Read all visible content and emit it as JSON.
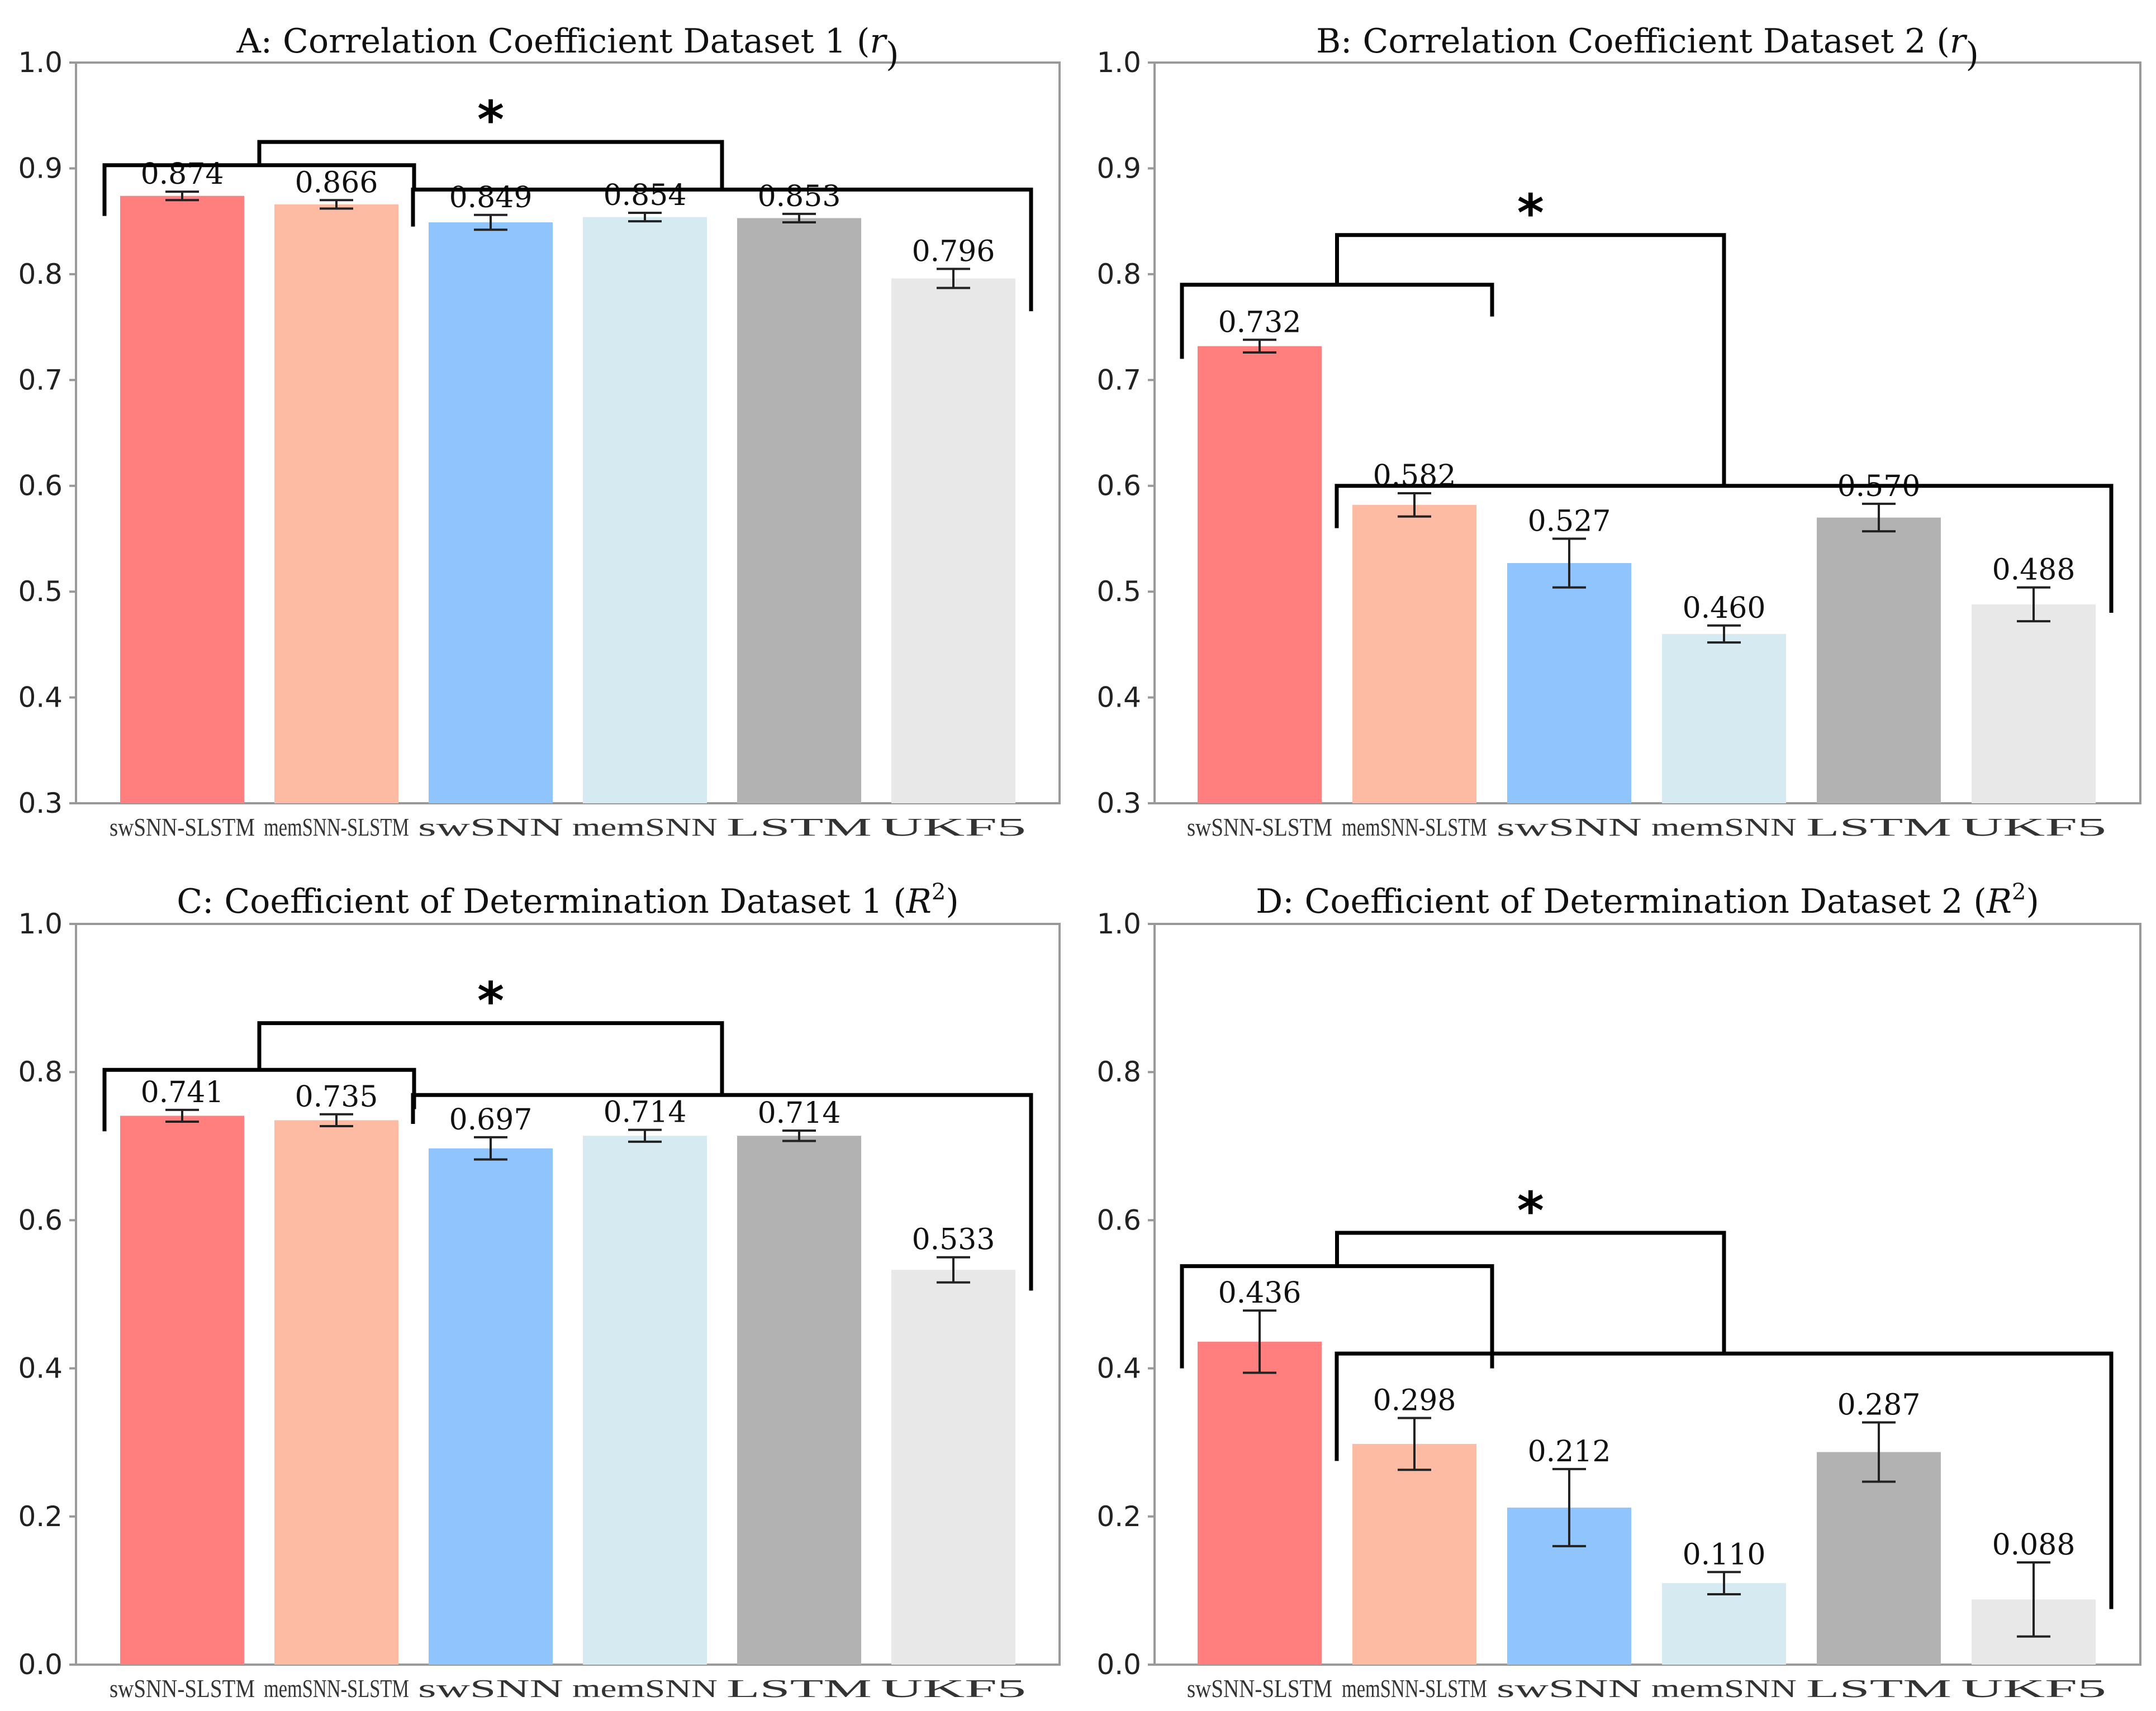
{
  "colors": [
    "#ff7f7f",
    "#fdbba3",
    "#8fc5fc",
    "#d6eaf2",
    "#b2b2b2",
    "#e8e8e8"
  ],
  "chart_data": [
    {
      "id": "A",
      "type": "bar",
      "title": "A: Correlation Coefficient Dataset 1 (r)",
      "title_main": "A: Correlation Coefficient Dataset 1 (",
      "title_sym": "r",
      "title_sup": "",
      "title_end": ")",
      "categories": [
        "swSNN-SLSTM",
        "memSNN-SLSTM",
        "swSNN",
        "memSNN",
        "LSTM",
        "UKF5"
      ],
      "values": [
        0.874,
        0.866,
        0.849,
        0.854,
        0.853,
        0.796
      ],
      "labels": [
        "0.874",
        "0.866",
        "0.849",
        "0.854",
        "0.853",
        "0.796"
      ],
      "errors": [
        0.004,
        0.004,
        0.007,
        0.004,
        0.004,
        0.009
      ],
      "ylim": [
        0.3,
        1.0
      ],
      "yticks": [
        0.3,
        0.4,
        0.5,
        0.6,
        0.7,
        0.8,
        0.9,
        1.0
      ],
      "ytick_labels": [
        "0.3",
        "0.4",
        "0.5",
        "0.6",
        "0.7",
        "0.8",
        "0.9",
        "1.0"
      ],
      "significance": {
        "label": "*",
        "group1": {
          "from": 0,
          "to": 1,
          "level": 0.903,
          "left_end": 0.855,
          "right_end": 0.88
        },
        "group2": {
          "from": 2,
          "to": 5,
          "level": 0.88,
          "left_end": 0.845,
          "right_end": 0.765
        },
        "top": 0.925
      }
    },
    {
      "id": "B",
      "type": "bar",
      "title": "B: Correlation Coefficient Dataset 2 (r)",
      "title_main": "B: Correlation Coefficient Dataset 2 (",
      "title_sym": "r",
      "title_sup": "",
      "title_end": ")",
      "categories": [
        "swSNN-SLSTM",
        "memSNN-SLSTM",
        "swSNN",
        "memSNN",
        "LSTM",
        "UKF5"
      ],
      "values": [
        0.732,
        0.582,
        0.527,
        0.46,
        0.57,
        0.488
      ],
      "labels": [
        "0.732",
        "0.582",
        "0.527",
        "0.460",
        "0.570",
        "0.488"
      ],
      "errors": [
        0.006,
        0.011,
        0.023,
        0.008,
        0.013,
        0.016
      ],
      "ylim": [
        0.3,
        1.0
      ],
      "yticks": [
        0.3,
        0.4,
        0.5,
        0.6,
        0.7,
        0.8,
        0.9,
        1.0
      ],
      "ytick_labels": [
        "0.3",
        "0.4",
        "0.5",
        "0.6",
        "0.7",
        "0.8",
        "0.9",
        "1.0"
      ],
      "significance": {
        "label": "*",
        "group1": {
          "from": 0,
          "to": 1,
          "level": 0.79,
          "left_end": 0.72,
          "right_end": 0.76
        },
        "group2": {
          "from": 1,
          "to": 5,
          "level": 0.6,
          "left_end": 0.56,
          "right_end": 0.48
        },
        "top": 0.837
      }
    },
    {
      "id": "C",
      "type": "bar",
      "title": "C: Coefficient of Determination Dataset 1 (R2)",
      "title_main": "C: Coefficient of Determination Dataset 1 (",
      "title_sym": "R",
      "title_sup": "2",
      "title_end": ")",
      "categories": [
        "swSNN-SLSTM",
        "memSNN-SLSTM",
        "swSNN",
        "memSNN",
        "LSTM",
        "UKF5"
      ],
      "values": [
        0.741,
        0.735,
        0.697,
        0.714,
        0.714,
        0.533
      ],
      "labels": [
        "0.741",
        "0.735",
        "0.697",
        "0.714",
        "0.714",
        "0.533"
      ],
      "errors": [
        0.008,
        0.008,
        0.015,
        0.008,
        0.007,
        0.017
      ],
      "ylim": [
        0.0,
        1.0
      ],
      "yticks": [
        0.0,
        0.2,
        0.4,
        0.6,
        0.8,
        1.0
      ],
      "ytick_labels": [
        "0.0",
        "0.2",
        "0.4",
        "0.6",
        "0.8",
        "1.0"
      ],
      "significance": {
        "label": "*",
        "group1": {
          "from": 0,
          "to": 1,
          "level": 0.803,
          "left_end": 0.72,
          "right_end": 0.75
        },
        "group2": {
          "from": 2,
          "to": 5,
          "level": 0.769,
          "left_end": 0.73,
          "right_end": 0.505
        },
        "top": 0.866
      }
    },
    {
      "id": "D",
      "type": "bar",
      "title": "D: Coefficient of Determination Dataset 2 (R2)",
      "title_main": "D: Coefficient of Determination Dataset 2 (",
      "title_sym": "R",
      "title_sup": "2",
      "title_end": ")",
      "categories": [
        "swSNN-SLSTM",
        "memSNN-SLSTM",
        "swSNN",
        "memSNN",
        "LSTM",
        "UKF5"
      ],
      "values": [
        0.436,
        0.298,
        0.212,
        0.11,
        0.287,
        0.088
      ],
      "labels": [
        "0.436",
        "0.298",
        "0.212",
        "0.110",
        "0.287",
        "0.088"
      ],
      "errors": [
        0.042,
        0.035,
        0.052,
        0.015,
        0.04,
        0.05
      ],
      "ylim": [
        0.0,
        1.0
      ],
      "yticks": [
        0.0,
        0.2,
        0.4,
        0.6,
        0.8,
        1.0
      ],
      "ytick_labels": [
        "0.0",
        "0.2",
        "0.4",
        "0.6",
        "0.8",
        "1.0"
      ],
      "significance": {
        "label": "*",
        "group1": {
          "from": 0,
          "to": 1,
          "level": 0.538,
          "left_end": 0.4,
          "right_end": 0.4
        },
        "group2": {
          "from": 1,
          "to": 5,
          "level": 0.42,
          "left_end": 0.275,
          "right_end": 0.075
        },
        "top": 0.583
      }
    }
  ]
}
